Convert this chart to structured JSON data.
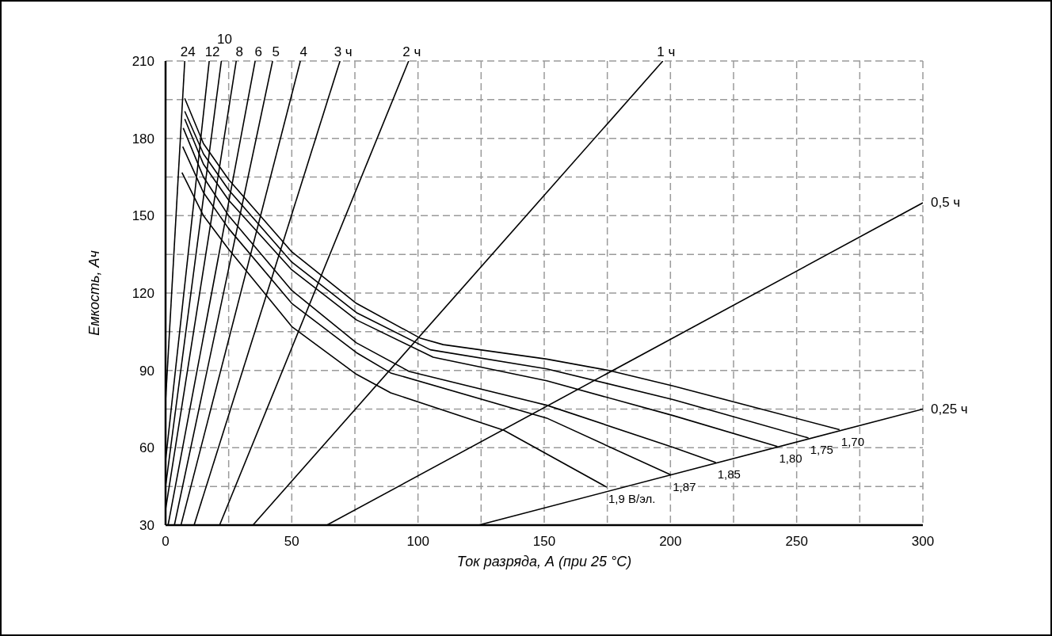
{
  "chart_data": {
    "type": "line",
    "xlabel": "Ток разряда, А (при 25 °C)",
    "ylabel": "Емкость, Ач",
    "xlim": [
      0,
      300
    ],
    "ylim": [
      30,
      210
    ],
    "xticks": [
      0,
      {
        "value": 25,
        "label": null
      },
      50,
      {
        "value": 75,
        "label": null
      },
      100,
      {
        "value": 125,
        "label": null
      },
      150,
      {
        "value": 175,
        "label": null
      },
      200,
      {
        "value": 225,
        "label": null
      },
      250,
      {
        "value": 275,
        "label": null
      },
      300
    ],
    "yticks": [
      30,
      {
        "value": 45,
        "label": null
      },
      60,
      {
        "value": 75,
        "label": null
      },
      90,
      {
        "value": 105,
        "label": null
      },
      120,
      {
        "value": 135,
        "label": null
      },
      150,
      {
        "value": 165,
        "label": null
      },
      180,
      {
        "value": 195,
        "label": null
      },
      210
    ],
    "grid": true,
    "marker": "none",
    "line_style": "solid",
    "series": [
      {
        "name": "24",
        "color": "#000000",
        "x": [
          0,
          7.6
        ],
        "values": [
          78,
          210
        ]
      },
      {
        "name": "12",
        "color": "#000000",
        "x": [
          0,
          17.3
        ],
        "values": [
          55,
          210
        ]
      },
      {
        "name": "10",
        "color": "#000000",
        "x": [
          0,
          22.1
        ],
        "values": [
          45,
          210
        ]
      },
      {
        "name": "8",
        "color": "#000000",
        "x": [
          0,
          28
        ],
        "values": [
          36,
          210
        ]
      },
      {
        "name": "6",
        "color": "#000000",
        "x": [
          1,
          35.5
        ],
        "values": [
          30,
          210
        ]
      },
      {
        "name": "5",
        "color": "#000000",
        "x": [
          3.5,
          42.4
        ],
        "values": [
          30,
          210
        ]
      },
      {
        "name": "4",
        "color": "#000000",
        "x": [
          6.1,
          53.4
        ],
        "values": [
          30,
          210
        ]
      },
      {
        "name": "3 ч",
        "color": "#000000",
        "x": [
          11.3,
          69.1
        ],
        "values": [
          30,
          210
        ]
      },
      {
        "name": "2 ч",
        "color": "#000000",
        "x": [
          21.4,
          96.3
        ],
        "values": [
          30,
          210
        ]
      },
      {
        "name": "1 ч",
        "color": "#000000",
        "x": [
          34.6,
          197
        ],
        "values": [
          30,
          210
        ]
      },
      {
        "name": "0,5 ч",
        "color": "#000000",
        "x": [
          63.9,
          300
        ],
        "values": [
          30,
          155
        ]
      },
      {
        "name": "0,25 ч",
        "color": "#000000",
        "x": [
          124,
          300
        ],
        "values": [
          30,
          75
        ]
      },
      {
        "name": "1,70",
        "color": "#000000",
        "x": [
          7.6,
          15,
          25,
          50,
          75.6,
          100.7,
          110,
          151,
          175,
          201,
          267
        ],
        "values": [
          195.5,
          178,
          164,
          136,
          116,
          102.6,
          100,
          94.4,
          90.1,
          84,
          67
        ]
      },
      {
        "name": "1,75",
        "color": "#000000",
        "x": [
          7.6,
          15,
          25,
          50,
          75.6,
          104.9,
          151,
          201,
          254.7
        ],
        "values": [
          190.5,
          174,
          160,
          132,
          112.4,
          98,
          90.6,
          78.7,
          63.8
        ]
      },
      {
        "name": "1,80",
        "color": "#000000",
        "x": [
          7.6,
          15,
          25,
          50,
          75.6,
          106,
          151,
          201,
          242.4
        ],
        "values": [
          187.5,
          170,
          156,
          129,
          109.6,
          95.1,
          86,
          72.5,
          60.5
        ]
      },
      {
        "name": "1,85",
        "color": "#000000",
        "x": [
          7,
          15,
          25,
          50,
          75.6,
          96.5,
          151,
          201,
          218
        ],
        "values": [
          184,
          165,
          150,
          121,
          100.7,
          89.6,
          76.5,
          60.2,
          54.3
        ]
      },
      {
        "name": "1,87",
        "color": "#000000",
        "x": [
          6.8,
          15,
          25,
          50,
          75.6,
          89.2,
          151,
          200.3
        ],
        "values": [
          176.8,
          159,
          145,
          116,
          96.9,
          89,
          71.5,
          49.4
        ]
      },
      {
        "name": "1,9 В/эл.",
        "color": "#000000",
        "x": [
          6.5,
          15,
          25,
          50,
          75.6,
          89.2,
          134,
          174.8
        ],
        "values": [
          166.7,
          150,
          137,
          107,
          88.5,
          81.3,
          66.8,
          44.7
        ]
      }
    ]
  }
}
